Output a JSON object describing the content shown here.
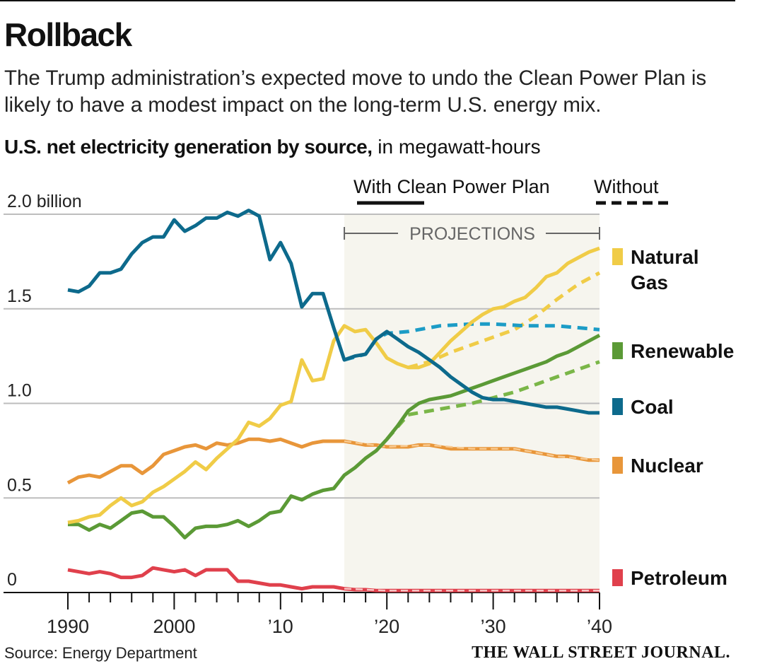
{
  "header": {
    "title": "Rollback",
    "dek": "The Trump administration’s expected move to undo the Clean Power Plan is likely to have a modest impact on the long-term U.S. energy mix.",
    "subtitle_bold": "U.S. net electricity generation by source,",
    "subtitle_rest": " in megawatt-hours"
  },
  "footer": {
    "source": "Source: Energy Department",
    "credit": "THE WALL STREET JOURNAL."
  },
  "chart_data": {
    "type": "line",
    "title": "U.S. net electricity generation by source, in megawatt-hours",
    "xlabel": "",
    "ylabel": "",
    "xlim": [
      1990,
      2040
    ],
    "ylim": [
      0,
      2.0
    ],
    "y_unit": "billion megawatt-hours",
    "yticks": [
      {
        "v": 0,
        "label": "0"
      },
      {
        "v": 0.5,
        "label": "0.5"
      },
      {
        "v": 1.0,
        "label": "1.0"
      },
      {
        "v": 1.5,
        "label": "1.5"
      },
      {
        "v": 2.0,
        "label": "2.0 billion"
      }
    ],
    "xticks": [
      {
        "v": 1990,
        "label": "1990"
      },
      {
        "v": 2000,
        "label": "2000"
      },
      {
        "v": 2010,
        "label": "’10"
      },
      {
        "v": 2020,
        "label": "’20"
      },
      {
        "v": 2030,
        "label": "’30"
      },
      {
        "v": 2040,
        "label": "’40"
      }
    ],
    "grid": true,
    "projection": {
      "start": 2016,
      "end": 2040,
      "label": "PROJECTIONS"
    },
    "legend": {
      "with_label": "With Clean Power Plan",
      "without_label": "Without",
      "placement": "top-right"
    },
    "x_start": 1990,
    "series": [
      {
        "name": "Natural Gas",
        "label_lines": [
          "Natural",
          "Gas"
        ],
        "color": "#f0cc47",
        "without_color": "#f0cc47",
        "values": [
          0.37,
          0.38,
          0.4,
          0.41,
          0.46,
          0.5,
          0.46,
          0.48,
          0.53,
          0.56,
          0.6,
          0.64,
          0.69,
          0.65,
          0.71,
          0.76,
          0.81,
          0.9,
          0.88,
          0.92,
          0.99,
          1.01,
          1.23,
          1.12,
          1.13,
          1.33,
          1.41,
          1.38,
          1.39,
          1.32,
          1.24,
          1.21,
          1.19,
          1.19,
          1.21,
          1.27,
          1.33,
          1.38,
          1.43,
          1.47,
          1.5,
          1.51,
          1.54,
          1.56,
          1.61,
          1.67,
          1.69,
          1.74,
          1.77,
          1.8,
          1.82
        ],
        "without": [
          [
            2022,
            1.19
          ],
          [
            2024,
            1.22
          ],
          [
            2026,
            1.27
          ],
          [
            2028,
            1.31
          ],
          [
            2030,
            1.35
          ],
          [
            2032,
            1.39
          ],
          [
            2034,
            1.46
          ],
          [
            2036,
            1.55
          ],
          [
            2038,
            1.63
          ],
          [
            2040,
            1.69
          ]
        ]
      },
      {
        "name": "Renewable",
        "label_lines": [
          "Renewable"
        ],
        "color": "#5b9a36",
        "without_color": "#7ab648",
        "values": [
          0.36,
          0.36,
          0.33,
          0.36,
          0.34,
          0.38,
          0.42,
          0.43,
          0.4,
          0.4,
          0.35,
          0.29,
          0.34,
          0.35,
          0.35,
          0.36,
          0.38,
          0.35,
          0.38,
          0.42,
          0.43,
          0.51,
          0.49,
          0.52,
          0.54,
          0.55,
          0.62,
          0.66,
          0.71,
          0.75,
          0.81,
          0.88,
          0.96,
          1.0,
          1.02,
          1.03,
          1.04,
          1.06,
          1.08,
          1.1,
          1.12,
          1.14,
          1.16,
          1.18,
          1.2,
          1.22,
          1.25,
          1.27,
          1.3,
          1.33,
          1.36
        ],
        "without": [
          [
            2020,
            0.81
          ],
          [
            2022,
            0.94
          ],
          [
            2024,
            0.96
          ],
          [
            2026,
            0.98
          ],
          [
            2028,
            1.0
          ],
          [
            2030,
            1.03
          ],
          [
            2032,
            1.06
          ],
          [
            2034,
            1.1
          ],
          [
            2036,
            1.14
          ],
          [
            2038,
            1.18
          ],
          [
            2040,
            1.22
          ]
        ]
      },
      {
        "name": "Coal",
        "label_lines": [
          "Coal"
        ],
        "color": "#0d6a8c",
        "without_color": "#1c9cc6",
        "values": [
          1.6,
          1.59,
          1.62,
          1.69,
          1.69,
          1.71,
          1.79,
          1.85,
          1.88,
          1.88,
          1.97,
          1.91,
          1.94,
          1.98,
          1.98,
          2.01,
          1.99,
          2.02,
          1.99,
          1.76,
          1.85,
          1.74,
          1.51,
          1.58,
          1.58,
          1.4,
          1.23,
          1.25,
          1.26,
          1.34,
          1.38,
          1.34,
          1.3,
          1.27,
          1.23,
          1.19,
          1.14,
          1.1,
          1.06,
          1.03,
          1.02,
          1.02,
          1.01,
          1.0,
          0.99,
          0.98,
          0.98,
          0.97,
          0.96,
          0.95,
          0.95
        ],
        "without": [
          [
            2016,
            1.23
          ],
          [
            2018,
            1.26
          ],
          [
            2019,
            1.34
          ],
          [
            2020,
            1.37
          ],
          [
            2022,
            1.38
          ],
          [
            2025,
            1.41
          ],
          [
            2028,
            1.42
          ],
          [
            2030,
            1.42
          ],
          [
            2033,
            1.41
          ],
          [
            2036,
            1.41
          ],
          [
            2040,
            1.39
          ]
        ]
      },
      {
        "name": "Nuclear",
        "label_lines": [
          "Nuclear"
        ],
        "color": "#e8963a",
        "without_color": "#f8c98f",
        "values": [
          0.58,
          0.61,
          0.62,
          0.61,
          0.64,
          0.67,
          0.67,
          0.63,
          0.67,
          0.73,
          0.75,
          0.77,
          0.78,
          0.76,
          0.79,
          0.78,
          0.79,
          0.81,
          0.81,
          0.8,
          0.81,
          0.79,
          0.77,
          0.79,
          0.8,
          0.8,
          0.8,
          0.79,
          0.78,
          0.78,
          0.77,
          0.77,
          0.77,
          0.78,
          0.78,
          0.77,
          0.76,
          0.76,
          0.76,
          0.76,
          0.76,
          0.76,
          0.76,
          0.75,
          0.74,
          0.73,
          0.72,
          0.72,
          0.71,
          0.7,
          0.7
        ],
        "without": [
          [
            2016,
            0.8
          ],
          [
            2020,
            0.77
          ],
          [
            2024,
            0.78
          ],
          [
            2028,
            0.76
          ],
          [
            2032,
            0.76
          ],
          [
            2034,
            0.74
          ],
          [
            2036,
            0.72
          ],
          [
            2040,
            0.7
          ]
        ]
      },
      {
        "name": "Petroleum",
        "label_lines": [
          "Petroleum"
        ],
        "color": "#e0404c",
        "without_color": "#f7c3c3",
        "values": [
          0.12,
          0.11,
          0.1,
          0.11,
          0.1,
          0.08,
          0.08,
          0.09,
          0.13,
          0.12,
          0.11,
          0.12,
          0.09,
          0.12,
          0.12,
          0.12,
          0.06,
          0.06,
          0.05,
          0.04,
          0.04,
          0.03,
          0.02,
          0.03,
          0.03,
          0.03,
          0.02,
          0.015,
          0.015,
          0.01,
          0.01,
          0.01,
          0.01,
          0.01,
          0.01,
          0.01,
          0.01,
          0.01,
          0.01,
          0.01,
          0.01,
          0.01,
          0.01,
          0.01,
          0.01,
          0.01,
          0.01,
          0.01,
          0.01,
          0.01,
          0.01
        ],
        "without": [
          [
            2016,
            0.02
          ],
          [
            2020,
            0.01
          ],
          [
            2040,
            0.01
          ]
        ]
      }
    ]
  }
}
